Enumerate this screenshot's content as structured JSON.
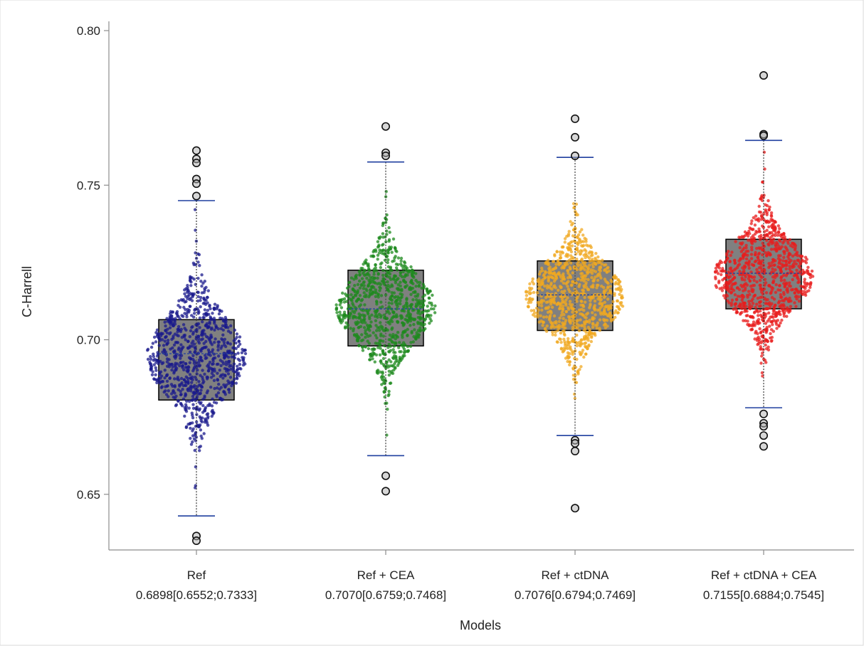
{
  "chart_data": {
    "type": "box",
    "title": "",
    "xlabel": "Models",
    "ylabel": "C-Harrell",
    "ylim": [
      0.632,
      0.803
    ],
    "yticks": [
      "0.80",
      "0.75",
      "0.70",
      "0.65"
    ],
    "ytick_values": [
      0.8,
      0.75,
      0.7,
      0.65
    ],
    "grid": false,
    "legend": "none",
    "box_fill": "#808080",
    "box_border": "#000000",
    "whisker_color": "#1f3f9f",
    "outlier_fill": "#b0b0b0",
    "series": [
      {
        "category": "Ref",
        "summary_label": "0.6898[0.6552;0.7333]",
        "color": "#1a1a8c",
        "q1": 0.6805,
        "median": 0.6955,
        "q3": 0.7065,
        "whisker_low": 0.643,
        "whisker_high": 0.745,
        "point_center": 0.6945,
        "point_spread": 0.0125,
        "outliers": [
          0.7612,
          0.7585,
          0.7572,
          0.752,
          0.7505,
          0.7465,
          0.6365,
          0.635
        ]
      },
      {
        "category": "Ref + CEA",
        "summary_label": "0.7070[0.6759;0.7468]",
        "color": "#1e8a1e",
        "q1": 0.698,
        "median": 0.71,
        "q3": 0.7225,
        "whisker_low": 0.6625,
        "whisker_high": 0.7575,
        "point_center": 0.7105,
        "point_spread": 0.011,
        "outliers": [
          0.769,
          0.7605,
          0.7595,
          0.656,
          0.651
        ]
      },
      {
        "category": "Ref + ctDNA",
        "summary_label": "0.7076[0.6794;0.7469]",
        "color": "#f0a820",
        "q1": 0.703,
        "median": 0.7145,
        "q3": 0.7255,
        "whisker_low": 0.669,
        "whisker_high": 0.759,
        "point_center": 0.714,
        "point_spread": 0.0105,
        "outliers": [
          0.7715,
          0.7655,
          0.7595,
          0.6675,
          0.6665,
          0.664,
          0.6455
        ]
      },
      {
        "category": "Ref + ctDNA + CEA",
        "summary_label": "0.7155[0.6884;0.7545]",
        "color": "#e81c1c",
        "q1": 0.71,
        "median": 0.7215,
        "q3": 0.7325,
        "whisker_low": 0.678,
        "whisker_high": 0.7645,
        "point_center": 0.7205,
        "point_spread": 0.0105,
        "outliers": [
          0.7855,
          0.7665,
          0.766,
          0.676,
          0.673,
          0.672,
          0.669,
          0.6655
        ]
      }
    ]
  }
}
